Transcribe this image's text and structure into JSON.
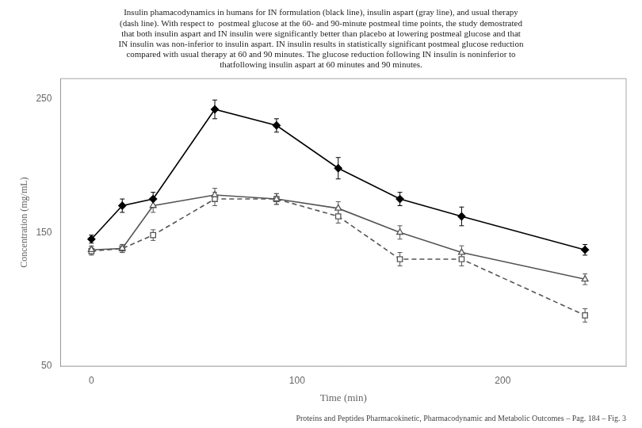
{
  "chart_data": {
    "type": "line",
    "title": "Insulin phamacodynamics in humans for IN formulation (black line), insulin aspart (gray line), and usual therapy\n(dash line). With respect to  postmeal glucose at the 60- and 90-minute postmeal time points, the study demostrated\nthat both insulin aspart and IN insulin were significantly better than placebo at lowering postmeal glucose and that\nIN insulin was non-inferior to insulin aspart. IN insulin results in statistically significant postmeal glucose reduction\ncompared with usual therapy at 60 and 90 minutes. The glucose reduction following IN insulin is noninferior to\nthatfollowing insulin aspart at 60 minutes and 90 minutes.",
    "annotations": [
      "Proteins and Peptides Pharmacokinetic, Pharmacodynamic and Metabolic Outcomes – Pag. 184 – Fig. 3"
    ],
    "x_label": "Time (min)",
    "y_label": "Concentration (mg/mL)",
    "x": [
      0,
      15,
      30,
      60,
      90,
      120,
      150,
      180,
      240
    ],
    "series": [
      {
        "color": "#000000",
        "marker": "diamond",
        "line_style": "solid",
        "values": [
          145,
          170,
          175,
          242,
          230,
          198,
          175,
          162,
          137
        ],
        "errors": [
          3,
          5,
          5,
          7,
          5,
          8,
          5,
          7,
          4
        ]
      },
      {
        "color": "#555555",
        "marker": "triangle-open",
        "line_style": "solid",
        "values": [
          137,
          138,
          170,
          178,
          175,
          168,
          150,
          135,
          115
        ],
        "errors": [
          3,
          3,
          5,
          5,
          4,
          5,
          5,
          5,
          4
        ]
      },
      {
        "color": "#555555",
        "marker": "square-open",
        "line_style": "dashed",
        "values": [
          136,
          138,
          148,
          175,
          175,
          162,
          130,
          130,
          88
        ],
        "errors": [
          3,
          3,
          4,
          5,
          4,
          5,
          5,
          5,
          5
        ]
      }
    ],
    "xlim": [
      -15,
      260
    ],
    "xticks": [
      0,
      100,
      200
    ],
    "ylim": [
      50,
      265
    ],
    "yticks": [
      50,
      150,
      250
    ],
    "grid": false
  }
}
